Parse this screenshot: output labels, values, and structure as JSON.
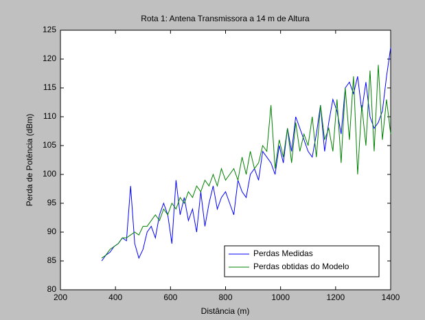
{
  "chart_data": {
    "type": "line",
    "title": "Rota 1: Antena Transmissora a 14 m de Altura",
    "x_label": "Distância (m)",
    "y_label": "Perda de Potência (dBm)",
    "x": [
      350,
      365,
      380,
      395,
      410,
      425,
      440,
      455,
      470,
      485,
      500,
      515,
      530,
      545,
      560,
      575,
      590,
      605,
      620,
      635,
      650,
      665,
      680,
      695,
      710,
      725,
      740,
      755,
      770,
      785,
      800,
      815,
      830,
      845,
      860,
      875,
      890,
      905,
      920,
      935,
      950,
      965,
      980,
      995,
      1010,
      1025,
      1040,
      1055,
      1070,
      1085,
      1100,
      1115,
      1130,
      1145,
      1160,
      1175,
      1190,
      1205,
      1220,
      1235,
      1250,
      1265,
      1280,
      1295,
      1310,
      1325,
      1340,
      1355,
      1370,
      1385,
      1400
    ],
    "series": [
      {
        "name": "Perdas Medidas",
        "color": "#0000ff",
        "values": [
          85,
          86,
          86.5,
          87.5,
          88,
          89,
          88.5,
          98,
          88,
          85.5,
          87,
          90,
          91,
          89,
          93,
          95,
          93,
          88,
          99,
          93,
          96,
          92,
          94,
          90,
          97,
          91,
          95,
          98,
          94,
          96,
          97,
          95,
          93,
          99,
          97,
          96,
          100,
          101,
          99,
          104,
          103,
          102,
          100,
          105,
          102,
          108,
          104,
          110,
          108,
          106,
          104,
          103,
          107,
          112,
          104,
          109,
          113,
          111,
          107,
          115,
          116,
          114,
          117,
          111,
          116,
          110,
          108,
          109,
          111,
          117,
          122
        ]
      },
      {
        "name": "Perdas obtidas do Modelo",
        "color": "#008000",
        "values": [
          85.5,
          86,
          87,
          87.5,
          88,
          89,
          89,
          89.5,
          90,
          89.5,
          91,
          91,
          92,
          93,
          92,
          94,
          93,
          95,
          94,
          96,
          95,
          97,
          96,
          98,
          97,
          99,
          98,
          100,
          98,
          101,
          99,
          100,
          101,
          99,
          103,
          100,
          104,
          101,
          102,
          105,
          104,
          112,
          101,
          106,
          103,
          108,
          102,
          109,
          104,
          107,
          105,
          110,
          103,
          112,
          106,
          108,
          104,
          113,
          102,
          115,
          106,
          117,
          100,
          112,
          105,
          118,
          104,
          119,
          106,
          113,
          107
        ]
      }
    ],
    "xlim": [
      200,
      1400
    ],
    "xticks": [
      200,
      400,
      600,
      800,
      1000,
      1200,
      1400
    ],
    "ylim": [
      80,
      125
    ],
    "yticks": [
      80,
      85,
      90,
      95,
      100,
      105,
      110,
      115,
      120,
      125
    ],
    "grid": false,
    "legend": "lower right"
  }
}
